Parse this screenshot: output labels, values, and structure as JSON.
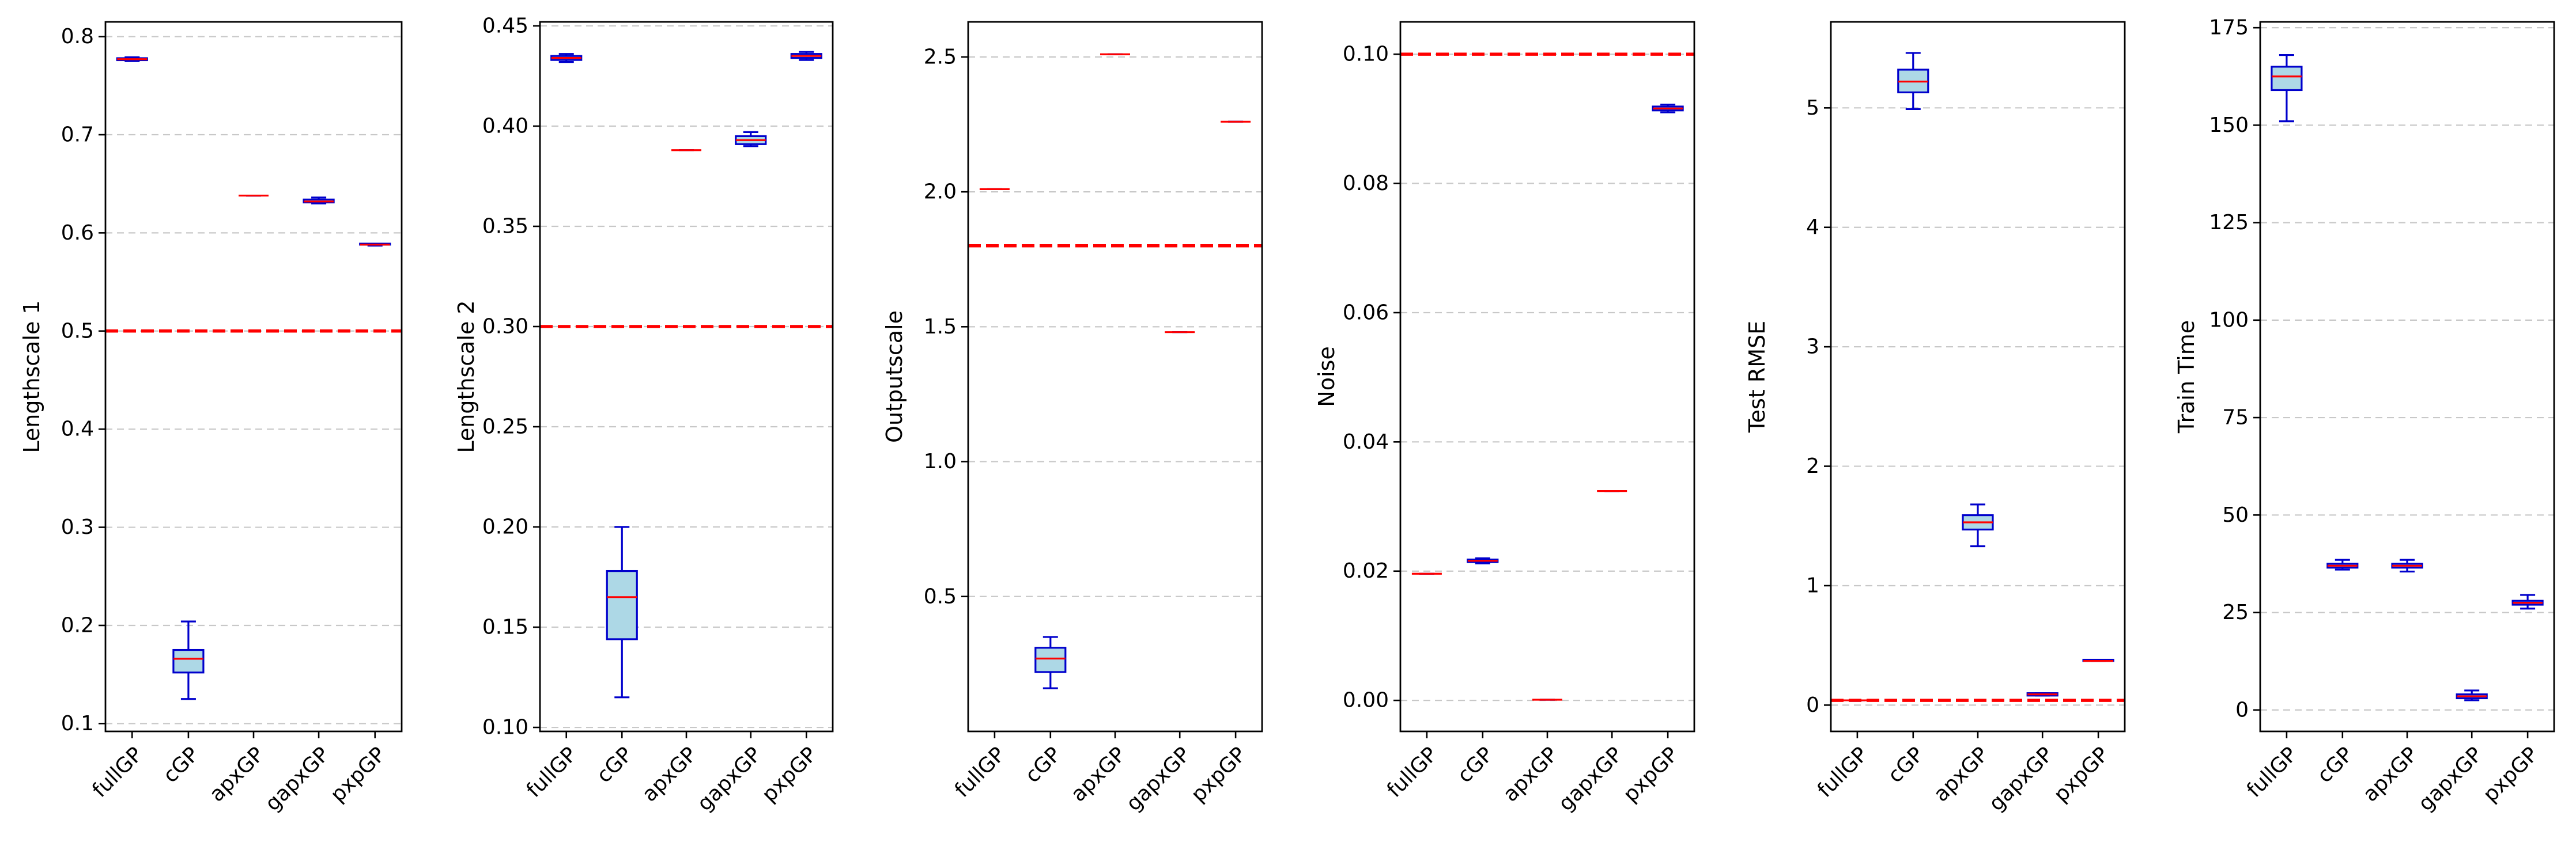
{
  "colors": {
    "box_edge": "#0000cc",
    "box_fill": "#add8e6",
    "median": "#ff0000",
    "reference": "#ff0000",
    "grid": "#c8c8c8",
    "axes": "#000000"
  },
  "chart_data": [
    {
      "type": "box",
      "ylabel": "Lengthscale 1",
      "categories": [
        "fullGP",
        "cGP",
        "apxGP",
        "gapxGP",
        "pxpGP"
      ],
      "ylim": [
        0.092,
        0.815
      ],
      "yticks": [
        0.1,
        0.2,
        0.3,
        0.4,
        0.5,
        0.6,
        0.7,
        0.8
      ],
      "ytick_labels": [
        "0.1",
        "0.2",
        "0.3",
        "0.4",
        "0.5",
        "0.6",
        "0.7",
        "0.8"
      ],
      "reference_line": 0.5,
      "grid": "y-dashed",
      "boxes": [
        {
          "whislo": 0.775,
          "q1": 0.776,
          "med": 0.777,
          "q3": 0.778,
          "whishi": 0.779
        },
        {
          "whislo": 0.125,
          "q1": 0.152,
          "med": 0.166,
          "q3": 0.175,
          "whishi": 0.204
        },
        {
          "whislo": 0.638,
          "q1": 0.638,
          "med": 0.638,
          "q3": 0.638,
          "whishi": 0.638
        },
        {
          "whislo": 0.63,
          "q1": 0.631,
          "med": 0.632,
          "q3": 0.634,
          "whishi": 0.636
        },
        {
          "whislo": 0.587,
          "q1": 0.588,
          "med": 0.588,
          "q3": 0.589,
          "whishi": 0.589
        }
      ]
    },
    {
      "type": "box",
      "ylabel": "Lengthscale 2",
      "categories": [
        "fullGP",
        "cGP",
        "apxGP",
        "gapxGP",
        "pxpGP"
      ],
      "ylim": [
        0.098,
        0.452
      ],
      "yticks": [
        0.1,
        0.15,
        0.2,
        0.25,
        0.3,
        0.35,
        0.4,
        0.45
      ],
      "ytick_labels": [
        "0.10",
        "0.15",
        "0.20",
        "0.25",
        "0.30",
        "0.35",
        "0.40",
        "0.45"
      ],
      "reference_line": 0.3,
      "grid": "y-dashed",
      "boxes": [
        {
          "whislo": 0.432,
          "q1": 0.433,
          "med": 0.434,
          "q3": 0.435,
          "whishi": 0.436
        },
        {
          "whislo": 0.115,
          "q1": 0.144,
          "med": 0.165,
          "q3": 0.178,
          "whishi": 0.2
        },
        {
          "whislo": 0.388,
          "q1": 0.388,
          "med": 0.388,
          "q3": 0.388,
          "whishi": 0.388
        },
        {
          "whislo": 0.39,
          "q1": 0.391,
          "med": 0.393,
          "q3": 0.395,
          "whishi": 0.397
        },
        {
          "whislo": 0.433,
          "q1": 0.434,
          "med": 0.435,
          "q3": 0.436,
          "whishi": 0.437
        }
      ]
    },
    {
      "type": "box",
      "ylabel": "Outputscale",
      "categories": [
        "fullGP",
        "cGP",
        "apxGP",
        "gapxGP",
        "pxpGP"
      ],
      "ylim": [
        0.0,
        2.63
      ],
      "yticks": [
        0.5,
        1.0,
        1.5,
        2.0,
        2.5
      ],
      "ytick_labels": [
        "0.5",
        "1.0",
        "1.5",
        "2.0",
        "2.5"
      ],
      "reference_line": 1.8,
      "grid": "y-dashed",
      "boxes": [
        {
          "whislo": 2.01,
          "q1": 2.01,
          "med": 2.01,
          "q3": 2.01,
          "whishi": 2.01
        },
        {
          "whislo": 0.16,
          "q1": 0.22,
          "med": 0.27,
          "q3": 0.31,
          "whishi": 0.35
        },
        {
          "whislo": 2.51,
          "q1": 2.51,
          "med": 2.51,
          "q3": 2.51,
          "whishi": 2.51
        },
        {
          "whislo": 1.48,
          "q1": 1.48,
          "med": 1.48,
          "q3": 1.48,
          "whishi": 1.48
        },
        {
          "whislo": 2.26,
          "q1": 2.26,
          "med": 2.26,
          "q3": 2.26,
          "whishi": 2.26
        }
      ]
    },
    {
      "type": "box",
      "ylabel": "Noise",
      "categories": [
        "fullGP",
        "cGP",
        "apxGP",
        "gapxGP",
        "pxpGP"
      ],
      "ylim": [
        -0.0048,
        0.105
      ],
      "yticks": [
        0.0,
        0.02,
        0.04,
        0.06,
        0.08,
        0.1
      ],
      "ytick_labels": [
        "0.00",
        "0.02",
        "0.04",
        "0.06",
        "0.08",
        "0.10"
      ],
      "reference_line": 0.1,
      "grid": "y-dashed",
      "boxes": [
        {
          "whislo": 0.0196,
          "q1": 0.0196,
          "med": 0.0196,
          "q3": 0.0196,
          "whishi": 0.0196
        },
        {
          "whislo": 0.0212,
          "q1": 0.0214,
          "med": 0.0216,
          "q3": 0.0218,
          "whishi": 0.022
        },
        {
          "whislo": 0.0001,
          "q1": 0.0001,
          "med": 0.0001,
          "q3": 0.0001,
          "whishi": 0.0001
        },
        {
          "whislo": 0.0324,
          "q1": 0.0324,
          "med": 0.0324,
          "q3": 0.0324,
          "whishi": 0.0324
        },
        {
          "whislo": 0.091,
          "q1": 0.0913,
          "med": 0.0916,
          "q3": 0.0919,
          "whishi": 0.0922
        }
      ]
    },
    {
      "type": "box",
      "ylabel": "Test RMSE",
      "categories": [
        "fullGP",
        "cGP",
        "apxGP",
        "gapxGP",
        "pxpGP"
      ],
      "ylim": [
        -0.22,
        5.72
      ],
      "yticks": [
        0,
        1,
        2,
        3,
        4,
        5
      ],
      "ytick_labels": [
        "0",
        "1",
        "2",
        "3",
        "4",
        "5"
      ],
      "reference_line": 0.04,
      "grid": "y-dashed",
      "boxes": [
        {
          "whislo": 0.04,
          "q1": 0.04,
          "med": 0.04,
          "q3": 0.04,
          "whishi": 0.04
        },
        {
          "whislo": 4.99,
          "q1": 5.13,
          "med": 5.22,
          "q3": 5.32,
          "whishi": 5.46
        },
        {
          "whislo": 1.33,
          "q1": 1.47,
          "med": 1.53,
          "q3": 1.59,
          "whishi": 1.68
        },
        {
          "whislo": 0.08,
          "q1": 0.08,
          "med": 0.09,
          "q3": 0.1,
          "whishi": 0.1
        },
        {
          "whislo": 0.37,
          "q1": 0.37,
          "med": 0.37,
          "q3": 0.38,
          "whishi": 0.38
        }
      ]
    },
    {
      "type": "box",
      "ylabel": "Train Time",
      "categories": [
        "fullGP",
        "cGP",
        "apxGP",
        "gapxGP",
        "pxpGP"
      ],
      "ylim": [
        -5.5,
        176.5
      ],
      "yticks": [
        0,
        25,
        50,
        75,
        100,
        125,
        150,
        175
      ],
      "ytick_labels": [
        "0",
        "25",
        "50",
        "75",
        "100",
        "125",
        "150",
        "175"
      ],
      "reference_line": null,
      "grid": "y-dashed",
      "boxes": [
        {
          "whislo": 151.0,
          "q1": 159.0,
          "med": 162.5,
          "q3": 165.0,
          "whishi": 168.0
        },
        {
          "whislo": 36.0,
          "q1": 36.5,
          "med": 37.0,
          "q3": 37.5,
          "whishi": 38.5
        },
        {
          "whislo": 35.5,
          "q1": 36.5,
          "med": 37.0,
          "q3": 37.5,
          "whishi": 38.5
        },
        {
          "whislo": 2.5,
          "q1": 3.0,
          "med": 3.5,
          "q3": 4.0,
          "whishi": 5.0
        },
        {
          "whislo": 26.0,
          "q1": 27.0,
          "med": 27.5,
          "q3": 28.0,
          "whishi": 29.5
        }
      ]
    }
  ]
}
